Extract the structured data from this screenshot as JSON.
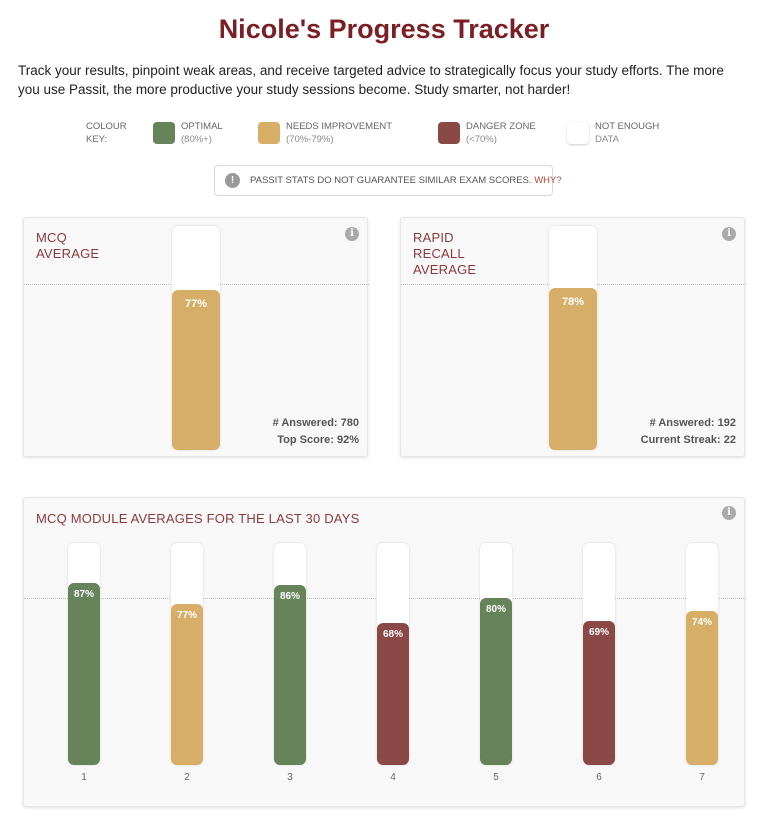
{
  "page": {
    "title": "Nicole's Progress Tracker",
    "intro": "Track your results, pinpoint weak areas, and receive targeted advice to strategically focus your study efforts. The more you use Passit, the more productive your study sessions become. Study smarter, not harder!"
  },
  "key": {
    "label_line1": "COLOUR",
    "label_line2": "KEY:",
    "items": [
      {
        "name": "OPTIMAL",
        "range": "(80%+)",
        "color": "#66835a"
      },
      {
        "name": "NEEDS IMPROVEMENT",
        "range": "(70%-79%)",
        "color": "#d6ae67"
      },
      {
        "name": "DANGER ZONE",
        "range": "(<70%)",
        "color": "#8a4847"
      },
      {
        "name": "NOT ENOUGH",
        "range": "DATA",
        "color": "#ffffff"
      }
    ]
  },
  "notice": {
    "icon": "!",
    "text": "PASSIT STATS DO NOT GUARANTEE SIMILAR EXAM SCORES. ",
    "link": "WHY?"
  },
  "mcq": {
    "title_line1": "MCQ",
    "title_line2": "AVERAGE",
    "value": 77,
    "value_label": "77%",
    "color": "#d6ae67",
    "answered": "# Answered: 780",
    "top_score": "Top Score: 92%"
  },
  "rapid": {
    "title_line1": "RAPID",
    "title_line2": "RECALL",
    "title_line3": "AVERAGE",
    "value": 78,
    "value_label": "78%",
    "color": "#d6ae67",
    "answered": "# Answered: 192",
    "streak": "Current Streak: 22"
  },
  "modules": {
    "title": "MCQ MODULE AVERAGES FOR THE LAST 30 DAYS",
    "target": 80
  },
  "chart_data": {
    "type": "bar",
    "title": "MCQ MODULE AVERAGES FOR THE LAST 30 DAYS",
    "categories": [
      "1",
      "2",
      "3",
      "4",
      "5",
      "6",
      "7"
    ],
    "values": [
      87,
      77,
      86,
      68,
      80,
      69,
      74
    ],
    "labels": [
      "87%",
      "77%",
      "86%",
      "68%",
      "80%",
      "69%",
      "74%"
    ],
    "colors": [
      "#66835a",
      "#d6ae67",
      "#66835a",
      "#8a4847",
      "#66835a",
      "#8a4847",
      "#d6ae67"
    ],
    "ylim": [
      0,
      100
    ],
    "reference_line": 80,
    "xlabel": "",
    "ylabel": ""
  }
}
